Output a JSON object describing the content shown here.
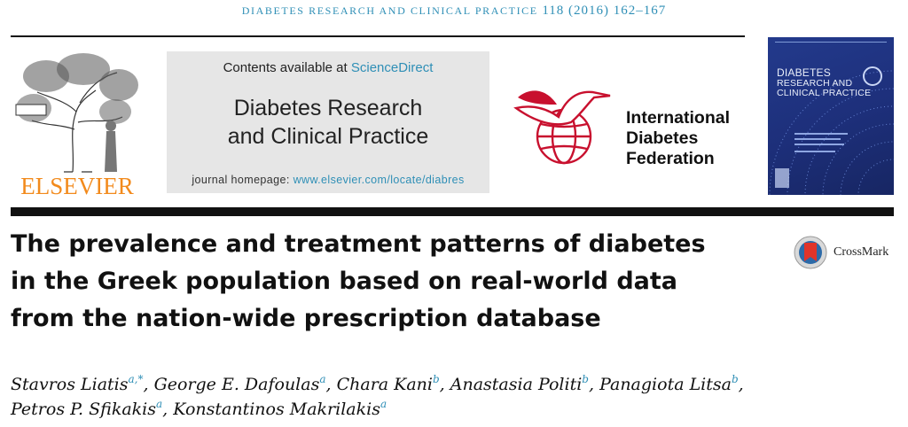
{
  "running_head": {
    "journal": "DIABETES RESEARCH AND CLINICAL PRACTICE",
    "citation": "118 (2016) 162–167"
  },
  "publisher": {
    "name": "ELSEVIER",
    "color": "#f28a1c"
  },
  "masthead": {
    "contents_prefix": "Contents available at ",
    "contents_link": "ScienceDirect",
    "journal_title_line1": "Diabetes Research",
    "journal_title_line2": "and Clinical Practice",
    "homepage_prefix": "journal homepage: ",
    "homepage_url": "www.elsevier.com/locate/diabres"
  },
  "idf": {
    "line1": "International",
    "line2": "Diabetes",
    "line3": "Federation",
    "accent": "#c8102e"
  },
  "cover": {
    "line1": "DIABETES",
    "line2": "RESEARCH AND",
    "line3": "CLINICAL PRACTICE"
  },
  "article": {
    "title_line1": "The prevalence and treatment patterns of diabetes",
    "title_line2": "in the Greek population based on real-world data",
    "title_line3": "from the nation-wide prescription database"
  },
  "crossmark": {
    "label": "CrossMark",
    "icon": "crossmark-icon"
  },
  "authors": [
    {
      "name": "Stavros Liatis",
      "aff": "a,*",
      "sep": ", "
    },
    {
      "name": "George E. Dafoulas",
      "aff": "a",
      "sep": ", "
    },
    {
      "name": "Chara Kani",
      "aff": "b",
      "sep": ", "
    },
    {
      "name": "Anastasia Politi",
      "aff": "b",
      "sep": ", "
    },
    {
      "name": "Panagiota Litsa",
      "aff": "b",
      "sep": ","
    },
    {
      "name": "Petros P. Sfikakis",
      "aff": "a",
      "sep": ", "
    },
    {
      "name": "Konstantinos Makrilakis",
      "aff": "a",
      "sep": ""
    }
  ],
  "colors": {
    "link": "#2f8fb6",
    "masthead_bg": "#e6e6e6",
    "cover_bg": "#1d2f7a"
  }
}
